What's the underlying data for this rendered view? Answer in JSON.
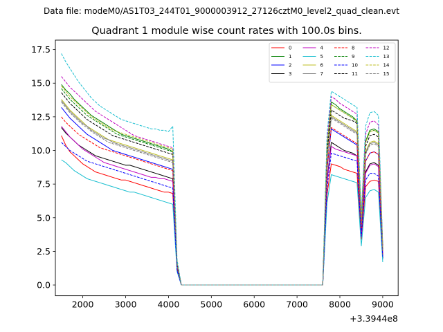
{
  "chart_data": {
    "type": "line",
    "suptitle": "Data file: modeM0/AS1T03_244T01_9000003912_27126cztM0_level2_quad_clean.evt",
    "title": "Quadrant 1 module wise count rates with 100.0s bins.",
    "xlabel": "",
    "ylabel": "",
    "x_offset_label": "+3.3944e8",
    "xlim": [
      1360,
      9360
    ],
    "ylim": [
      -0.8,
      18.2
    ],
    "xticks": [
      2000,
      3000,
      4000,
      5000,
      6000,
      7000,
      8000,
      9000
    ],
    "yticks": [
      "0.0",
      "2.5",
      "5.0",
      "7.5",
      "10.0",
      "12.5",
      "15.0",
      "17.5"
    ],
    "ytick_values": [
      0,
      2.5,
      5,
      7.5,
      10,
      12.5,
      15,
      17.5
    ],
    "legend_position": "top-right",
    "x": [
      1500,
      1600,
      1700,
      1800,
      1900,
      2000,
      2100,
      2200,
      2300,
      2400,
      2500,
      2600,
      2700,
      2800,
      2900,
      3000,
      3100,
      3200,
      3300,
      3400,
      3500,
      3600,
      3700,
      3800,
      3900,
      4000,
      4100,
      4200,
      4300,
      7600,
      7700,
      7800,
      7900,
      8000,
      8100,
      8200,
      8300,
      8400,
      8500,
      8600,
      8700,
      8800,
      8900,
      9000
    ],
    "series": [
      {
        "name": "0",
        "color": "#ff0000",
        "style": "solid",
        "values": [
          11.1,
          10.4,
          9.9,
          9.6,
          9.3,
          9.0,
          8.8,
          8.6,
          8.4,
          8.3,
          8.2,
          8.1,
          8.0,
          7.9,
          7.8,
          7.8,
          7.7,
          7.6,
          7.5,
          7.4,
          7.3,
          7.2,
          7.1,
          7.0,
          6.9,
          6.9,
          6.8,
          1.2,
          0,
          0,
          6.7,
          9.0,
          8.9,
          8.8,
          8.6,
          8.5,
          8.4,
          8.3,
          3.4,
          7.3,
          7.7,
          7.8,
          7.7,
          2.2
        ]
      },
      {
        "name": "1",
        "color": "#008000",
        "style": "solid",
        "values": [
          14.9,
          14.5,
          14.2,
          13.8,
          13.5,
          13.2,
          12.9,
          12.6,
          12.4,
          12.2,
          12.0,
          11.8,
          11.6,
          11.4,
          11.2,
          11.1,
          11.0,
          10.9,
          10.8,
          10.7,
          10.6,
          10.5,
          10.4,
          10.3,
          10.2,
          10.1,
          9.9,
          1.6,
          0,
          0,
          10.3,
          13.6,
          13.4,
          13.1,
          12.9,
          12.7,
          12.5,
          12.2,
          4.9,
          10.7,
          11.5,
          11.6,
          11.4,
          2.9
        ]
      },
      {
        "name": "2",
        "color": "#0000ff",
        "style": "solid",
        "values": [
          13.2,
          12.8,
          12.4,
          12.1,
          11.8,
          11.5,
          11.2,
          11.0,
          10.8,
          10.6,
          10.4,
          10.2,
          10.0,
          9.9,
          9.8,
          9.7,
          9.6,
          9.5,
          9.4,
          9.3,
          9.2,
          9.1,
          9.0,
          8.9,
          8.8,
          8.7,
          8.6,
          1.4,
          0,
          0,
          8.6,
          11.6,
          11.4,
          11.2,
          11.0,
          10.8,
          10.6,
          10.4,
          4.2,
          9.2,
          9.8,
          9.9,
          9.7,
          1.9
        ]
      },
      {
        "name": "3",
        "color": "#000000",
        "style": "solid",
        "values": [
          11.7,
          11.3,
          11.0,
          10.7,
          10.4,
          10.2,
          10.0,
          9.8,
          9.6,
          9.5,
          9.4,
          9.3,
          9.2,
          9.1,
          9.0,
          8.9,
          8.9,
          8.8,
          8.7,
          8.6,
          8.5,
          8.4,
          8.3,
          8.2,
          8.1,
          8.0,
          7.9,
          1.2,
          0,
          0,
          7.8,
          10.6,
          10.4,
          10.2,
          10.0,
          9.9,
          9.8,
          9.6,
          3.9,
          8.4,
          9.0,
          9.1,
          8.9,
          2.0
        ]
      },
      {
        "name": "4",
        "color": "#bf00bf",
        "style": "solid",
        "values": [
          11.8,
          11.4,
          11.0,
          10.7,
          10.4,
          10.1,
          9.9,
          9.7,
          9.5,
          9.3,
          9.1,
          9.0,
          8.9,
          8.8,
          8.7,
          8.6,
          8.5,
          8.4,
          8.3,
          8.2,
          8.1,
          8.0,
          8.0,
          7.9,
          7.9,
          7.8,
          7.7,
          1.1,
          0,
          0,
          7.7,
          10.3,
          10.1,
          10.0,
          9.9,
          9.8,
          9.7,
          9.6,
          3.7,
          8.3,
          8.9,
          9.0,
          8.8,
          2.3
        ]
      },
      {
        "name": "5",
        "color": "#17becf",
        "style": "solid",
        "values": [
          9.3,
          9.1,
          8.8,
          8.5,
          8.3,
          8.1,
          7.9,
          7.8,
          7.7,
          7.6,
          7.5,
          7.4,
          7.3,
          7.2,
          7.1,
          7.0,
          6.9,
          6.9,
          6.8,
          6.7,
          6.6,
          6.5,
          6.4,
          6.3,
          6.2,
          6.1,
          6.0,
          1.0,
          0,
          0,
          6.1,
          8.2,
          8.1,
          8.0,
          7.9,
          7.8,
          7.7,
          7.6,
          2.9,
          6.5,
          7.0,
          7.1,
          6.9,
          1.7
        ]
      },
      {
        "name": "6",
        "color": "#bcbd22",
        "style": "solid",
        "values": [
          13.8,
          13.4,
          13.0,
          12.7,
          12.4,
          12.1,
          11.8,
          11.6,
          11.4,
          11.2,
          11.0,
          10.8,
          10.7,
          10.6,
          10.5,
          10.4,
          10.3,
          10.2,
          10.1,
          10.0,
          9.9,
          9.8,
          9.7,
          9.6,
          9.5,
          9.4,
          9.3,
          1.5,
          0,
          0,
          9.4,
          12.6,
          12.4,
          12.2,
          12.0,
          11.8,
          11.6,
          11.4,
          4.5,
          9.9,
          10.6,
          10.7,
          10.5,
          2.6
        ]
      },
      {
        "name": "7",
        "color": "#7f7f7f",
        "style": "solid",
        "values": [
          13.7,
          13.3,
          12.9,
          12.6,
          12.3,
          12.0,
          11.8,
          11.5,
          11.3,
          11.1,
          10.9,
          10.8,
          10.6,
          10.5,
          10.4,
          10.3,
          10.2,
          10.1,
          10.0,
          9.9,
          9.8,
          9.7,
          9.6,
          9.5,
          9.4,
          9.3,
          9.2,
          1.5,
          0,
          0,
          9.3,
          12.5,
          12.3,
          12.1,
          11.9,
          11.7,
          11.5,
          11.3,
          4.5,
          9.8,
          10.5,
          10.6,
          10.4,
          2.5
        ]
      },
      {
        "name": "8",
        "color": "#ff0000",
        "style": "dashed",
        "values": [
          12.5,
          12.1,
          11.8,
          11.5,
          11.2,
          11.0,
          10.8,
          10.6,
          10.4,
          10.2,
          10.1,
          10.0,
          9.9,
          9.8,
          9.7,
          9.6,
          9.5,
          9.4,
          9.3,
          9.2,
          9.1,
          9.0,
          8.9,
          8.8,
          8.7,
          8.6,
          8.5,
          1.3,
          0,
          0,
          8.6,
          11.7,
          11.5,
          11.3,
          11.1,
          10.9,
          10.7,
          10.5,
          4.2,
          9.2,
          9.8,
          9.9,
          9.7,
          2.3
        ]
      },
      {
        "name": "9",
        "color": "#008000",
        "style": "dashed",
        "values": [
          14.6,
          14.2,
          13.8,
          13.5,
          13.2,
          12.9,
          12.6,
          12.4,
          12.2,
          12.0,
          11.8,
          11.6,
          11.4,
          11.2,
          11.1,
          11.0,
          10.9,
          10.8,
          10.7,
          10.6,
          10.5,
          10.4,
          10.3,
          10.2,
          10.1,
          10.0,
          9.9,
          1.6,
          0,
          0,
          10.2,
          13.4,
          13.2,
          13.0,
          12.8,
          12.6,
          12.4,
          12.1,
          4.9,
          10.6,
          11.4,
          11.5,
          11.3,
          2.8
        ]
      },
      {
        "name": "10",
        "color": "#0000ff",
        "style": "dashed",
        "values": [
          10.6,
          10.3,
          10.0,
          9.8,
          9.6,
          9.4,
          9.2,
          9.1,
          9.0,
          8.9,
          8.8,
          8.7,
          8.6,
          8.5,
          8.4,
          8.3,
          8.2,
          8.1,
          8.0,
          7.9,
          7.8,
          7.7,
          7.6,
          7.5,
          7.4,
          7.3,
          7.2,
          1.1,
          0,
          0,
          7.2,
          9.8,
          9.7,
          9.6,
          9.5,
          9.4,
          9.3,
          9.2,
          3.6,
          7.8,
          8.3,
          8.3,
          8.1,
          2.1
        ]
      },
      {
        "name": "11",
        "color": "#000000",
        "style": "dashed",
        "values": [
          14.3,
          13.9,
          13.5,
          13.2,
          12.9,
          12.6,
          12.3,
          12.1,
          11.9,
          11.7,
          11.5,
          11.3,
          11.1,
          11.0,
          10.9,
          10.8,
          10.7,
          10.6,
          10.5,
          10.4,
          10.3,
          10.2,
          10.1,
          10.0,
          9.9,
          9.8,
          9.7,
          1.5,
          0,
          0,
          9.8,
          13.0,
          12.8,
          12.6,
          12.4,
          12.3,
          12.2,
          12.0,
          4.7,
          10.3,
          11.1,
          11.2,
          11.0,
          2.7
        ]
      },
      {
        "name": "12",
        "color": "#bf00bf",
        "style": "dashed",
        "values": [
          15.5,
          15.1,
          14.7,
          14.4,
          14.1,
          13.8,
          13.5,
          13.2,
          12.9,
          12.7,
          12.5,
          12.3,
          12.1,
          11.9,
          11.7,
          11.5,
          11.3,
          11.1,
          11.0,
          10.9,
          10.8,
          10.7,
          10.6,
          10.5,
          10.4,
          10.3,
          10.2,
          1.7,
          0,
          0,
          10.6,
          14.0,
          13.8,
          13.5,
          13.3,
          13.1,
          12.9,
          12.7,
          5.1,
          11.2,
          12.1,
          12.2,
          11.9,
          2.9
        ]
      },
      {
        "name": "13",
        "color": "#17becf",
        "style": "dashed",
        "values": [
          17.2,
          16.6,
          16.1,
          15.6,
          15.1,
          14.7,
          14.3,
          13.9,
          13.6,
          13.3,
          13.1,
          12.9,
          12.7,
          12.5,
          12.3,
          12.2,
          12.1,
          12.0,
          11.9,
          11.8,
          11.7,
          11.6,
          11.6,
          11.5,
          11.5,
          11.4,
          11.8,
          1.9,
          0,
          0,
          11.2,
          14.4,
          14.2,
          14.0,
          13.8,
          13.6,
          13.4,
          13.2,
          5.3,
          11.8,
          12.8,
          12.9,
          12.6,
          3.0
        ]
      },
      {
        "name": "14",
        "color": "#bcbd22",
        "style": "dashed",
        "values": [
          14.8,
          14.4,
          14.0,
          13.7,
          13.4,
          13.1,
          12.8,
          12.5,
          12.3,
          12.1,
          11.9,
          11.7,
          11.5,
          11.4,
          11.3,
          11.2,
          11.1,
          11.0,
          10.9,
          10.8,
          10.7,
          10.6,
          10.5,
          10.4,
          10.3,
          10.2,
          10.1,
          1.6,
          0,
          0,
          10.3,
          13.4,
          13.2,
          13.0,
          12.8,
          12.6,
          12.4,
          12.2,
          4.8,
          10.6,
          11.4,
          11.5,
          11.3,
          2.8
        ]
      },
      {
        "name": "15",
        "color": "#7f7f7f",
        "style": "dashed",
        "values": [
          13.6,
          13.2,
          12.8,
          12.5,
          12.2,
          11.9,
          11.7,
          11.4,
          11.2,
          11.0,
          10.8,
          10.6,
          10.5,
          10.4,
          10.3,
          10.2,
          10.1,
          10.0,
          9.9,
          9.8,
          9.7,
          9.6,
          9.5,
          9.4,
          9.3,
          9.2,
          9.1,
          1.5,
          0,
          0,
          9.2,
          12.4,
          12.2,
          12.0,
          11.8,
          11.6,
          11.4,
          11.2,
          4.4,
          9.7,
          10.4,
          10.5,
          10.3,
          2.5
        ]
      }
    ]
  }
}
